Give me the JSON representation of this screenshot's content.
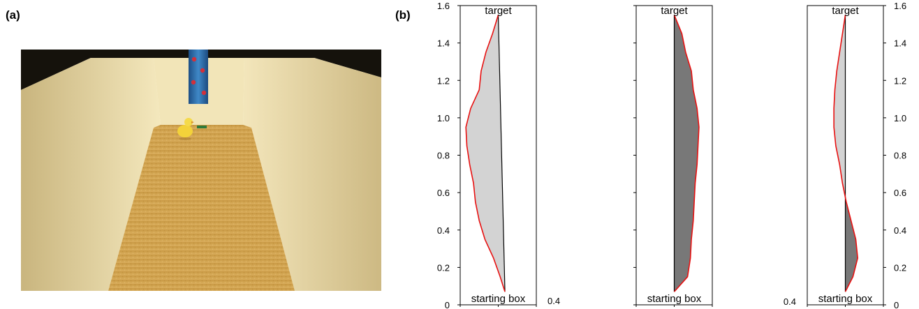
{
  "figure": {
    "panel_a_label": "(a)",
    "panel_b_label": "(b)"
  },
  "photo": {
    "description_icon": "corridor-photo-icon",
    "colors": {
      "walls": "#e9dcae",
      "floor": "#d2a24f",
      "target_cylinder": "#2f6fae",
      "dots": "#d2303a",
      "chick": "#f3d23a"
    }
  },
  "chart_data": [
    {
      "type": "area",
      "orientation": "vertical-y",
      "top_label": "target",
      "bottom_label": "starting box",
      "y_ticks": [
        "0",
        "0.2",
        "0.4",
        "0.6",
        "0.8",
        "1.0",
        "1.2",
        "1.4",
        "1.6"
      ],
      "x_end_label": "0.4",
      "ylim": [
        0,
        1.6
      ],
      "xlim": [
        -0.4,
        0.4
      ],
      "fill": "#d3d3d3",
      "path_color": "#e81010",
      "line": {
        "x": [
          0.07,
          0.0
        ],
        "y": [
          0.07,
          1.55
        ]
      },
      "path": {
        "y": [
          0.07,
          0.15,
          0.25,
          0.35,
          0.45,
          0.55,
          0.65,
          0.75,
          0.85,
          0.95,
          1.05,
          1.15,
          1.25,
          1.35,
          1.45,
          1.55
        ],
        "x": [
          0.07,
          0.02,
          -0.05,
          -0.14,
          -0.2,
          -0.24,
          -0.26,
          -0.3,
          -0.33,
          -0.34,
          -0.29,
          -0.2,
          -0.18,
          -0.13,
          -0.06,
          0.0
        ]
      }
    },
    {
      "type": "area",
      "orientation": "vertical-y",
      "top_label": "target",
      "bottom_label": "starting box",
      "ylim": [
        0,
        1.6
      ],
      "xlim": [
        -0.4,
        0.4
      ],
      "fill": "#787878",
      "path_color": "#e81010",
      "line": {
        "x": [
          0.0,
          0.0
        ],
        "y": [
          0.07,
          1.55
        ]
      },
      "path": {
        "y": [
          0.07,
          0.15,
          0.25,
          0.35,
          0.45,
          0.55,
          0.65,
          0.75,
          0.85,
          0.95,
          1.05,
          1.15,
          1.25,
          1.35,
          1.45,
          1.55
        ],
        "x": [
          0.0,
          0.14,
          0.17,
          0.18,
          0.2,
          0.21,
          0.22,
          0.24,
          0.25,
          0.26,
          0.24,
          0.2,
          0.18,
          0.12,
          0.08,
          0.0
        ]
      }
    },
    {
      "type": "area",
      "orientation": "vertical-y",
      "top_label": "target",
      "bottom_label": "starting box",
      "y_ticks": [
        "0",
        "0.2",
        "0.4",
        "0.6",
        "0.8",
        "1.0",
        "1.2",
        "1.4",
        "1.6"
      ],
      "x_start_label": "0.4",
      "ylim": [
        0,
        1.6
      ],
      "xlim": [
        -0.4,
        0.4
      ],
      "fill_above": "#d3d3d3",
      "fill_below": "#787878",
      "path_color": "#e81010",
      "line": {
        "x": [
          0.0,
          0.0
        ],
        "y": [
          0.07,
          1.55
        ]
      },
      "path": {
        "y": [
          0.07,
          0.15,
          0.25,
          0.35,
          0.45,
          0.55,
          0.65,
          0.75,
          0.85,
          0.95,
          1.05,
          1.15,
          1.25,
          1.35,
          1.45,
          1.55
        ],
        "x": [
          0.0,
          0.08,
          0.13,
          0.11,
          0.06,
          0.01,
          -0.03,
          -0.06,
          -0.1,
          -0.12,
          -0.12,
          -0.11,
          -0.09,
          -0.06,
          -0.03,
          0.0
        ]
      }
    }
  ]
}
